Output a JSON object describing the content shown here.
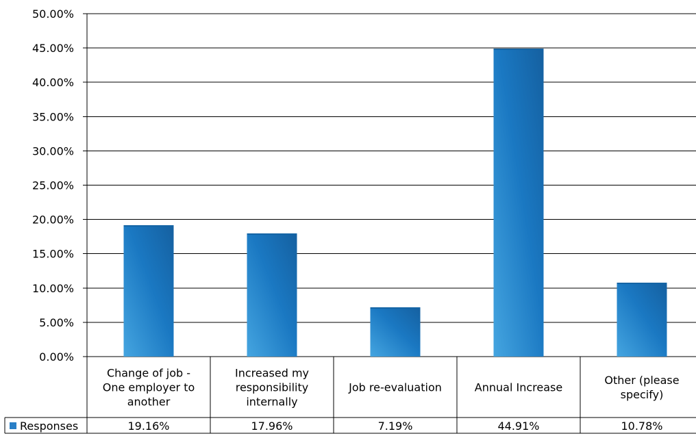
{
  "chart_data": {
    "type": "bar",
    "categories": [
      [
        "Change of job -",
        "One employer to",
        "another"
      ],
      [
        "Increased my",
        "responsibility",
        "internally"
      ],
      [
        "Job re-evaluation"
      ],
      [
        "Annual Increase"
      ],
      [
        "Other (please",
        "specify)"
      ]
    ],
    "series": [
      {
        "name": "Responses",
        "values": [
          19.16,
          17.96,
          7.19,
          44.91,
          10.78
        ],
        "labels": [
          "19.16%",
          "17.96%",
          "7.19%",
          "44.91%",
          "10.78%"
        ]
      }
    ],
    "ylim": [
      0,
      50
    ],
    "y_ticks": [
      "0.00%",
      "5.00%",
      "10.00%",
      "15.00%",
      "20.00%",
      "25.00%",
      "30.00%",
      "35.00%",
      "40.00%",
      "45.00%",
      "50.00%"
    ],
    "grid": true,
    "legend": "data-table-left",
    "colors": {
      "bar_light": "#3c9fdc",
      "bar_dark": "#1464a4",
      "legend_key": "#2a7fc6",
      "grid": "#000000"
    }
  }
}
